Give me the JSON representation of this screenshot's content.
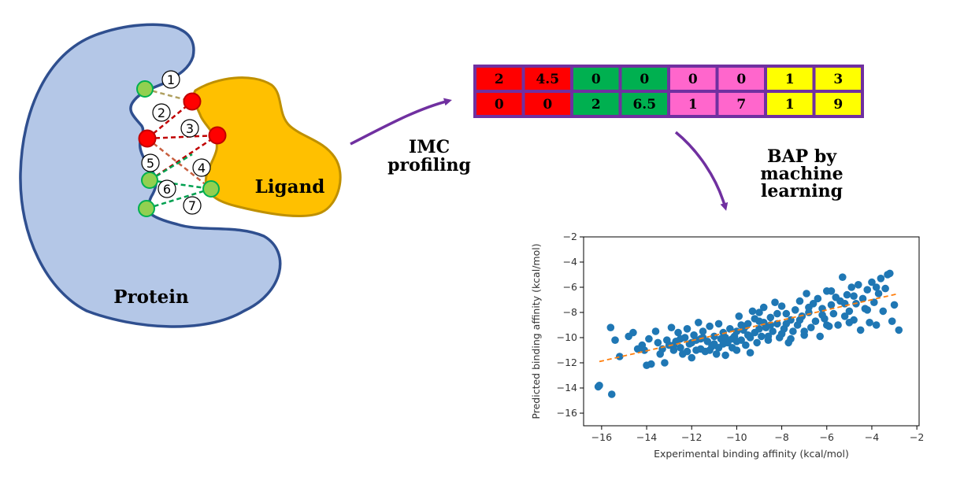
{
  "diagram": {
    "protein_label": "Protein",
    "ligand_label": "Ligand",
    "step1_label_line1": "IMC",
    "step1_label_line2": "profiling",
    "step2_label_line1": "BAP by",
    "step2_label_line2": "machine",
    "step2_label_line3": "learning",
    "interaction_numbers": [
      "1",
      "2",
      "3",
      "4",
      "5",
      "6",
      "7"
    ],
    "colors": {
      "protein": "#b4c7e7",
      "protein_outline": "#2f4f8f",
      "ligand": "#ffc000",
      "ligand_outline": "#bf9000",
      "arrow": "#7030a0",
      "green_atom": "#92d050",
      "red_atom": "#ff0000"
    }
  },
  "profile_table": {
    "rows": [
      [
        "2",
        "4.5",
        "0",
        "0",
        "0",
        "0",
        "1",
        "3"
      ],
      [
        "0",
        "0",
        "2",
        "6.5",
        "1",
        "7",
        "1",
        "9"
      ]
    ],
    "column_colors": [
      "#ff0000",
      "#ff0000",
      "#00b050",
      "#00b050",
      "#ff66cc",
      "#ff66cc",
      "#ffff00",
      "#ffff00"
    ],
    "border_color": "#7030a0"
  },
  "chart_data": {
    "type": "scatter",
    "xlabel": "Experimental binding affinity (kcal/mol)",
    "ylabel": "Predicted binding affinity (kcal/mol)",
    "xlim": [
      -16.8,
      -1.9
    ],
    "ylim": [
      -17,
      -2
    ],
    "xticks": [
      -16,
      -14,
      -12,
      -10,
      -8,
      -6,
      -4,
      -2
    ],
    "yticks": [
      -2,
      -4,
      -6,
      -8,
      -10,
      -12,
      -14,
      -16
    ],
    "x_tick_labels": [
      "−16",
      "−14",
      "−12",
      "−10",
      "−8",
      "−6",
      "−4",
      "−2"
    ],
    "y_tick_labels": [
      "−2",
      "−4",
      "−6",
      "−8",
      "−10",
      "−12",
      "−14",
      "−16"
    ],
    "point_color": "#1f77b4",
    "fit_line": {
      "x": [
        -16.1,
        -2.8
      ],
      "y": [
        -11.9,
        -6.5
      ],
      "color": "#ff7f0e",
      "style": "dashed"
    },
    "points": [
      [
        -16.1,
        -13.8
      ],
      [
        -16.15,
        -13.9
      ],
      [
        -15.55,
        -14.5
      ],
      [
        -15.6,
        -9.2
      ],
      [
        -15.4,
        -10.2
      ],
      [
        -15.2,
        -11.5
      ],
      [
        -14.8,
        -9.9
      ],
      [
        -14.6,
        -9.6
      ],
      [
        -14.2,
        -10.6
      ],
      [
        -14.1,
        -11.0
      ],
      [
        -14.0,
        -12.2
      ],
      [
        -13.8,
        -12.1
      ],
      [
        -13.9,
        -10.1
      ],
      [
        -13.6,
        -9.5
      ],
      [
        -13.5,
        -10.4
      ],
      [
        -13.3,
        -10.9
      ],
      [
        -13.2,
        -12.0
      ],
      [
        -13.1,
        -10.2
      ],
      [
        -13.0,
        -10.6
      ],
      [
        -12.9,
        -9.2
      ],
      [
        -12.8,
        -11.0
      ],
      [
        -12.7,
        -10.3
      ],
      [
        -12.6,
        -9.6
      ],
      [
        -12.5,
        -10.8
      ],
      [
        -12.4,
        -11.3
      ],
      [
        -12.3,
        -10.0
      ],
      [
        -12.2,
        -9.3
      ],
      [
        -12.1,
        -10.5
      ],
      [
        -12.0,
        -11.6
      ],
      [
        -11.9,
        -9.8
      ],
      [
        -11.8,
        -10.2
      ],
      [
        -11.7,
        -8.8
      ],
      [
        -11.6,
        -10.9
      ],
      [
        -11.5,
        -9.5
      ],
      [
        -11.4,
        -11.1
      ],
      [
        -11.3,
        -10.3
      ],
      [
        -11.2,
        -9.1
      ],
      [
        -11.1,
        -10.7
      ],
      [
        -11.0,
        -9.9
      ],
      [
        -10.9,
        -11.3
      ],
      [
        -10.8,
        -8.9
      ],
      [
        -10.7,
        -10.1
      ],
      [
        -10.6,
        -9.6
      ],
      [
        -10.5,
        -11.4
      ],
      [
        -10.4,
        -10.4
      ],
      [
        -10.3,
        -9.3
      ],
      [
        -10.2,
        -10.8
      ],
      [
        -10.1,
        -9.9
      ],
      [
        -10.0,
        -11.0
      ],
      [
        -9.9,
        -8.3
      ],
      [
        -9.8,
        -10.2
      ],
      [
        -9.7,
        -9.4
      ],
      [
        -9.6,
        -10.6
      ],
      [
        -9.5,
        -8.9
      ],
      [
        -9.4,
        -10.0
      ],
      [
        -9.3,
        -7.9
      ],
      [
        -9.2,
        -9.6
      ],
      [
        -9.1,
        -10.4
      ],
      [
        -9.0,
        -8.7
      ],
      [
        -8.9,
        -9.9
      ],
      [
        -8.8,
        -7.6
      ],
      [
        -8.7,
        -9.2
      ],
      [
        -8.6,
        -10.2
      ],
      [
        -8.5,
        -8.4
      ],
      [
        -8.4,
        -9.5
      ],
      [
        -8.3,
        -7.2
      ],
      [
        -8.2,
        -8.9
      ],
      [
        -8.1,
        -10.0
      ],
      [
        -8.0,
        -7.5
      ],
      [
        -7.9,
        -9.3
      ],
      [
        -7.8,
        -8.1
      ],
      [
        -7.7,
        -10.4
      ],
      [
        -7.6,
        -8.6
      ],
      [
        -7.5,
        -9.5
      ],
      [
        -7.4,
        -7.8
      ],
      [
        -7.3,
        -9.0
      ],
      [
        -7.2,
        -7.1
      ],
      [
        -7.1,
        -8.3
      ],
      [
        -7.0,
        -9.8
      ],
      [
        -6.9,
        -6.5
      ],
      [
        -6.8,
        -8.0
      ],
      [
        -6.7,
        -9.2
      ],
      [
        -6.6,
        -7.3
      ],
      [
        -6.5,
        -8.7
      ],
      [
        -6.4,
        -6.9
      ],
      [
        -6.3,
        -9.9
      ],
      [
        -6.2,
        -7.7
      ],
      [
        -6.1,
        -8.5
      ],
      [
        -6.0,
        -6.3
      ],
      [
        -5.9,
        -9.1
      ],
      [
        -5.8,
        -7.4
      ],
      [
        -5.7,
        -8.1
      ],
      [
        -5.6,
        -6.8
      ],
      [
        -5.5,
        -9.0
      ],
      [
        -5.4,
        -7.1
      ],
      [
        -5.3,
        -5.2
      ],
      [
        -5.2,
        -8.3
      ],
      [
        -5.1,
        -6.6
      ],
      [
        -5.0,
        -7.9
      ],
      [
        -4.9,
        -6.0
      ],
      [
        -4.8,
        -8.6
      ],
      [
        -4.7,
        -7.3
      ],
      [
        -4.6,
        -5.8
      ],
      [
        -4.5,
        -9.4
      ],
      [
        -4.4,
        -6.9
      ],
      [
        -4.3,
        -7.7
      ],
      [
        -4.2,
        -6.2
      ],
      [
        -4.1,
        -8.8
      ],
      [
        -4.0,
        -5.6
      ],
      [
        -3.9,
        -7.2
      ],
      [
        -3.8,
        -9.0
      ],
      [
        -3.7,
        -6.5
      ],
      [
        -3.6,
        -5.3
      ],
      [
        -3.5,
        -7.9
      ],
      [
        -3.4,
        -6.1
      ],
      [
        -3.3,
        -5.0
      ],
      [
        -3.2,
        -4.9
      ],
      [
        -3.1,
        -8.7
      ],
      [
        -3.0,
        -7.4
      ],
      [
        -2.8,
        -9.4
      ],
      [
        -11.5,
        -10.0
      ],
      [
        -11.0,
        -10.5
      ],
      [
        -10.5,
        -10.0
      ],
      [
        -10.0,
        -9.5
      ],
      [
        -9.5,
        -9.8
      ],
      [
        -9.0,
        -9.3
      ],
      [
        -8.5,
        -9.0
      ],
      [
        -12.5,
        -10.1
      ],
      [
        -12.0,
        -10.4
      ],
      [
        -11.8,
        -11.0
      ],
      [
        -10.8,
        -10.8
      ],
      [
        -9.8,
        -9.0
      ],
      [
        -9.2,
        -8.5
      ],
      [
        -8.8,
        -8.8
      ],
      [
        -8.2,
        -8.1
      ],
      [
        -7.8,
        -8.9
      ],
      [
        -7.2,
        -8.6
      ],
      [
        -6.8,
        -7.6
      ],
      [
        -6.2,
        -8.2
      ],
      [
        -5.8,
        -6.3
      ],
      [
        -5.2,
        -7.3
      ],
      [
        -4.8,
        -6.7
      ],
      [
        -4.2,
        -7.8
      ],
      [
        -3.8,
        -6.0
      ],
      [
        -10.2,
        -10.1
      ],
      [
        -9.6,
        -9.1
      ],
      [
        -11.2,
        -11.0
      ],
      [
        -12.8,
        -10.6
      ],
      [
        -13.4,
        -11.3
      ],
      [
        -14.4,
        -10.9
      ],
      [
        -8.0,
        -9.7
      ],
      [
        -7.0,
        -9.5
      ],
      [
        -6.0,
        -9.0
      ],
      [
        -5.0,
        -8.8
      ],
      [
        -10.6,
        -10.5
      ],
      [
        -11.6,
        -10.1
      ],
      [
        -9.4,
        -11.2
      ],
      [
        -8.6,
        -9.9
      ],
      [
        -7.6,
        -10.1
      ],
      [
        -12.2,
        -11.1
      ],
      [
        -10.0,
        -10.3
      ],
      [
        -9.0,
        -8.0
      ]
    ]
  }
}
